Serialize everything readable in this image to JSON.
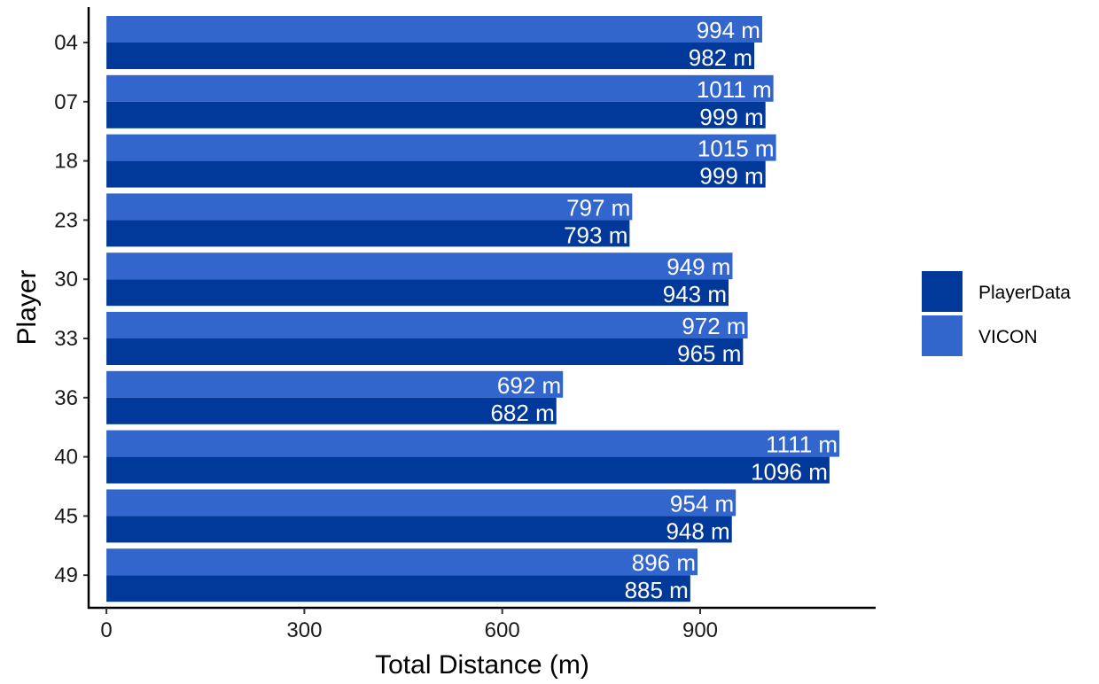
{
  "chart_data": {
    "type": "bar",
    "orientation": "horizontal",
    "categories": [
      "04",
      "07",
      "18",
      "23",
      "30",
      "33",
      "36",
      "40",
      "45",
      "49"
    ],
    "series": [
      {
        "name": "PlayerData",
        "color": "#01399A",
        "values": [
          982,
          999,
          999,
          793,
          943,
          965,
          682,
          1096,
          948,
          885
        ],
        "labels": [
          "982 m",
          "999 m",
          "999 m",
          "793 m",
          "943 m",
          "965 m",
          "682 m",
          "1096 m",
          "948 m",
          "885 m"
        ]
      },
      {
        "name": "VICON",
        "color": "#3366CC",
        "values": [
          994,
          1011,
          1015,
          797,
          949,
          972,
          692,
          1111,
          954,
          896
        ],
        "labels": [
          "994 m",
          "1011 m",
          "1015 m",
          "797 m",
          "949 m",
          "972 m",
          "692 m",
          "1111 m",
          "954 m",
          "896 m"
        ]
      }
    ],
    "xlabel": "Total Distance (m)",
    "ylabel": "Player",
    "xticks": [
      "0",
      "300",
      "600",
      "900"
    ],
    "xtick_values": [
      0,
      300,
      600,
      900
    ],
    "xlim": [
      -27,
      1166
    ],
    "grid": false,
    "legend_position": "right"
  }
}
